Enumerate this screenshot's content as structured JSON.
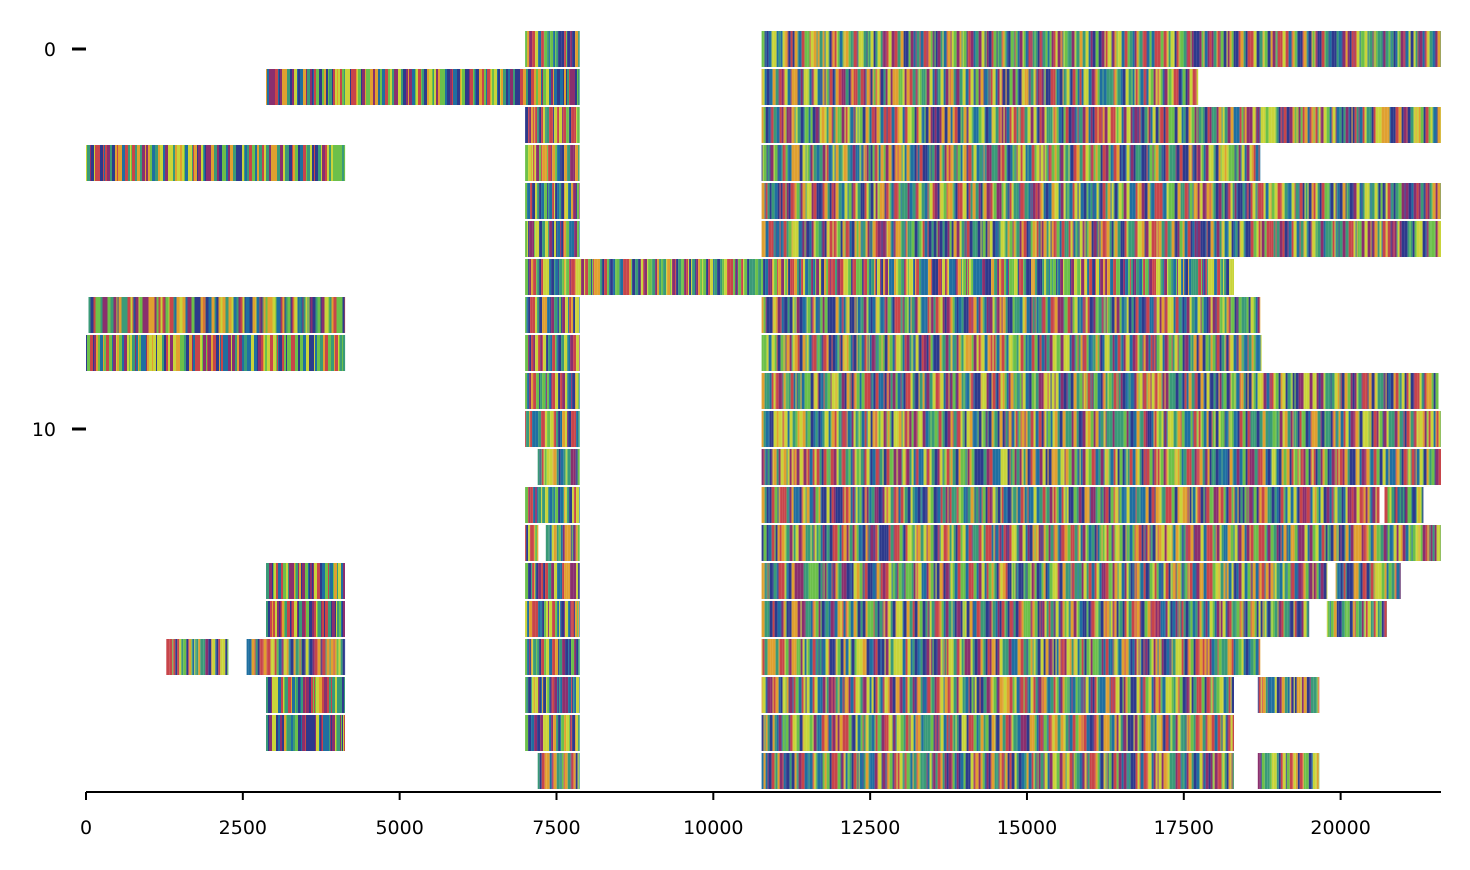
{
  "chart_data": {
    "type": "heatmap",
    "title": "",
    "xlabel": "",
    "ylabel": "",
    "xlim": [
      0,
      21600
    ],
    "ylim": [
      -0.5,
      19.5
    ],
    "grid": false,
    "legend": "none",
    "x_ticks": [
      0,
      2500,
      5000,
      7500,
      10000,
      12500,
      15000,
      17500,
      20000
    ],
    "x_tick_labels": [
      "0",
      "2500",
      "5000",
      "7500",
      "10000",
      "12500",
      "15000",
      "17500",
      "20000"
    ],
    "y_ticks": [
      0,
      10
    ],
    "y_tick_labels": [
      "0",
      "10"
    ],
    "palette": [
      "#2d3a8c",
      "#1f6fa0",
      "#3a9a78",
      "#6cc04a",
      "#c9d43a",
      "#e0a030",
      "#c8454a",
      "#8a2f6e"
    ],
    "rows": [
      {
        "row": 0,
        "segments": [
          [
            7000,
            7870
          ],
          [
            10770,
            21600
          ]
        ]
      },
      {
        "row": 1,
        "segments": [
          [
            2870,
            7870
          ],
          [
            10770,
            17730
          ]
        ]
      },
      {
        "row": 2,
        "segments": [
          [
            7000,
            7870
          ],
          [
            10770,
            21600
          ]
        ]
      },
      {
        "row": 3,
        "segments": [
          [
            0,
            4130
          ],
          [
            7000,
            7870
          ],
          [
            10770,
            18720
          ]
        ]
      },
      {
        "row": 4,
        "segments": [
          [
            7000,
            7870
          ],
          [
            10770,
            21600
          ]
        ]
      },
      {
        "row": 5,
        "segments": [
          [
            7000,
            7870
          ],
          [
            10770,
            21600
          ]
        ]
      },
      {
        "row": 6,
        "segments": [
          [
            7000,
            18300
          ]
        ]
      },
      {
        "row": 7,
        "segments": [
          [
            40,
            4130
          ],
          [
            7000,
            7870
          ],
          [
            10770,
            18720
          ]
        ]
      },
      {
        "row": 8,
        "segments": [
          [
            0,
            4130
          ],
          [
            7000,
            7870
          ],
          [
            10770,
            18740
          ]
        ]
      },
      {
        "row": 9,
        "segments": [
          [
            7000,
            7870
          ],
          [
            10770,
            21560
          ]
        ]
      },
      {
        "row": 10,
        "segments": [
          [
            7000,
            7870
          ],
          [
            10770,
            21600
          ]
        ]
      },
      {
        "row": 11,
        "segments": [
          [
            7200,
            7870
          ],
          [
            10770,
            21600
          ]
        ]
      },
      {
        "row": 12,
        "segments": [
          [
            7000,
            7870
          ],
          [
            10770,
            20620
          ],
          [
            20700,
            21320
          ]
        ]
      },
      {
        "row": 13,
        "segments": [
          [
            7000,
            7210
          ],
          [
            7330,
            7870
          ],
          [
            10770,
            21600
          ]
        ]
      },
      {
        "row": 14,
        "segments": [
          [
            2870,
            4130
          ],
          [
            7000,
            7870
          ],
          [
            10770,
            19790
          ],
          [
            19920,
            20960
          ]
        ]
      },
      {
        "row": 15,
        "segments": [
          [
            2870,
            4130
          ],
          [
            7000,
            7870
          ],
          [
            10770,
            19500
          ],
          [
            19780,
            20740
          ]
        ]
      },
      {
        "row": 16,
        "segments": [
          [
            1280,
            2270
          ],
          [
            2560,
            4130
          ],
          [
            7000,
            7870
          ],
          [
            10770,
            18720
          ]
        ]
      },
      {
        "row": 17,
        "segments": [
          [
            2870,
            4130
          ],
          [
            7000,
            7870
          ],
          [
            10770,
            18300
          ],
          [
            18680,
            19660
          ]
        ]
      },
      {
        "row": 18,
        "segments": [
          [
            2870,
            4130
          ],
          [
            7000,
            7870
          ],
          [
            10770,
            18300
          ]
        ]
      },
      {
        "row": 19,
        "segments": [
          [
            7200,
            7870
          ],
          [
            10770,
            18300
          ],
          [
            18680,
            19660
          ]
        ]
      }
    ]
  }
}
